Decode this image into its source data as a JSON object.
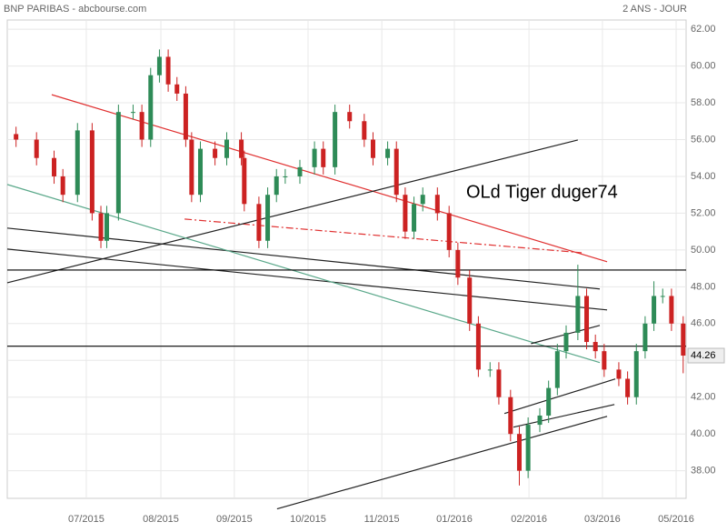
{
  "chart_data": {
    "type": "candlestick",
    "title": "BNP PARIBAS - abcbourse.com",
    "subtitle": "2 ANS - JOUR",
    "annotation": "OLd Tiger duger74",
    "up_color": "#2e8b57",
    "down_color": "#cc2222",
    "grid": true,
    "xlim": [
      0,
      232
    ],
    "xticks": [
      {
        "value": 27,
        "label": "07/2015"
      },
      {
        "value": 52.5,
        "label": "08/2015"
      },
      {
        "value": 77.6,
        "label": "09/2015"
      },
      {
        "value": 102.8,
        "label": "10/2015"
      },
      {
        "value": 128,
        "label": "11/2015"
      },
      {
        "value": 152.8,
        "label": "01/2016"
      },
      {
        "value": 178.3,
        "label": "02/2016"
      },
      {
        "value": 203.4,
        "label": "03/2016"
      },
      {
        "value": 228.6,
        "label": "05/2016"
      }
    ],
    "ylim": [
      36.5,
      62.5
    ],
    "yticks": [
      {
        "value": 38,
        "label": "38.00"
      },
      {
        "value": 40,
        "label": "40.00"
      },
      {
        "value": 42,
        "label": "42.00"
      },
      {
        "value": 44,
        "label": "44.00"
      },
      {
        "value": 46,
        "label": "46.00"
      },
      {
        "value": 48,
        "label": "48.00"
      },
      {
        "value": 50,
        "label": "50.00"
      },
      {
        "value": 52,
        "label": "52.00"
      },
      {
        "value": 54,
        "label": "54.00"
      },
      {
        "value": 56,
        "label": "56.00"
      },
      {
        "value": 58,
        "label": "58.00"
      },
      {
        "value": 60,
        "label": "60.00"
      },
      {
        "value": 62,
        "label": "62.00"
      }
    ],
    "candles": {
      "x": [
        3,
        10,
        16,
        19,
        24,
        29,
        32,
        34,
        38,
        43,
        46,
        49,
        52,
        55,
        58,
        61,
        63,
        66,
        71,
        75,
        80,
        81,
        86,
        89,
        92,
        95,
        100,
        105,
        108,
        112,
        117,
        122,
        125,
        130,
        133,
        136,
        139,
        142,
        147,
        151,
        154,
        158,
        161,
        165,
        168,
        172,
        175,
        178,
        182,
        185,
        188,
        191,
        195,
        198,
        201,
        204,
        209,
        212,
        215,
        218,
        221,
        224,
        227,
        231
      ],
      "open": [
        56.3,
        56,
        55,
        54,
        53,
        56.5,
        52,
        50.5,
        52,
        57.5,
        57.5,
        56,
        59.5,
        60.5,
        59,
        58.5,
        56,
        53,
        55.5,
        55,
        56,
        55,
        52.5,
        50.5,
        53,
        54,
        54,
        54.5,
        55.5,
        54.5,
        57.5,
        57,
        56,
        55,
        55.5,
        53,
        51,
        52.5,
        53,
        52,
        50,
        48.5,
        46,
        43.5,
        43.5,
        42,
        40,
        38,
        40.5,
        41,
        42.5,
        44.5,
        45.5,
        47.5,
        45,
        44.5,
        43.5,
        43,
        42,
        44.5,
        46,
        47.5,
        47.5,
        46
      ],
      "high": [
        56.7,
        56.4,
        55.4,
        54.4,
        56.9,
        56.9,
        52.4,
        52.4,
        57.9,
        57.9,
        57.9,
        59.9,
        60.9,
        60.9,
        59.4,
        58.9,
        56.4,
        55.9,
        55.9,
        56.4,
        56.4,
        55.4,
        52.9,
        53.4,
        54.4,
        54.4,
        54.9,
        55.9,
        55.9,
        57.9,
        57.9,
        57.4,
        56.4,
        55.9,
        55.9,
        53.4,
        52.9,
        53.4,
        53.4,
        52.4,
        50.4,
        48.9,
        46.4,
        43.9,
        43.9,
        42.4,
        40.4,
        40.9,
        41.4,
        42.9,
        44.9,
        45.9,
        49.2,
        47.9,
        45.4,
        44.9,
        43.9,
        43.4,
        44.9,
        46.4,
        48.3,
        47.9,
        47.9,
        46.4
      ],
      "low": [
        55.6,
        54.6,
        53.6,
        52.6,
        52.6,
        51.6,
        50.1,
        50.1,
        51.6,
        57.1,
        55.6,
        55.6,
        59.1,
        58.6,
        58.1,
        55.6,
        52.6,
        52.6,
        54.6,
        54.6,
        54.6,
        52.1,
        50.1,
        50.1,
        52.6,
        53.6,
        53.6,
        54.1,
        54.1,
        54.1,
        56.6,
        55.6,
        54.6,
        54.6,
        52.6,
        50.6,
        50.6,
        52.1,
        51.6,
        49.6,
        48.1,
        45.6,
        43.1,
        43.1,
        41.6,
        39.6,
        37.2,
        37.6,
        40.1,
        40.6,
        42.1,
        44.1,
        45.1,
        44.6,
        44.1,
        43.1,
        42.6,
        41.6,
        41.6,
        44.1,
        45.6,
        47.1,
        45.6,
        43.3
      ],
      "close": [
        56,
        55,
        54,
        53,
        56.5,
        52,
        50.5,
        52,
        57.5,
        57.5,
        56,
        59.5,
        60.5,
        59,
        58.5,
        56,
        53,
        55.5,
        55,
        56,
        55,
        52.5,
        50.5,
        53,
        54,
        54,
        54.5,
        55.5,
        54.5,
        57.5,
        57,
        56,
        55,
        55.5,
        53,
        51,
        52.5,
        53,
        52,
        50,
        48.5,
        46,
        43.5,
        43.5,
        42,
        40,
        38,
        40.5,
        41,
        42.5,
        44.5,
        45.5,
        47.5,
        45,
        44.5,
        43.5,
        43,
        42,
        44.5,
        46,
        47.5,
        47.5,
        46,
        44.26
      ]
    },
    "lines": [
      {
        "x": [
          15.2,
          205
        ],
        "y": [
          58.44,
          49.36
        ],
        "color": "#e03030",
        "style": "solid"
      },
      {
        "x": [
          60.6,
          196.3
        ],
        "y": [
          51.68,
          49.85
        ],
        "color": "#e03030",
        "style": "dashdot"
      },
      {
        "x": [
          0,
          195
        ],
        "y": [
          48.22,
          55.98
        ],
        "color": "#222222",
        "style": "solid"
      },
      {
        "x": [
          0,
          202.5
        ],
        "y": [
          51.19,
          47.88
        ],
        "color": "#222222",
        "style": "solid"
      },
      {
        "x": [
          0,
          205
        ],
        "y": [
          50.05,
          46.74
        ],
        "color": "#222222",
        "style": "solid"
      },
      {
        "x": [
          0,
          202.5
        ],
        "y": [
          53.56,
          43.88
        ],
        "color": "#5aa88a",
        "style": "solid"
      },
      {
        "x": [
          0,
          232
        ],
        "y": [
          48.91,
          48.91
        ],
        "color": "#000000",
        "style": "solid"
      },
      {
        "x": [
          0,
          232
        ],
        "y": [
          44.77,
          44.77
        ],
        "color": "#000000",
        "style": "solid"
      },
      {
        "x": [
          92.2,
          205
        ],
        "y": [
          35.93,
          40.96
        ],
        "color": "#222222",
        "style": "solid"
      },
      {
        "x": [
          169.9,
          207.8
        ],
        "y": [
          41.11,
          42.99
        ],
        "color": "#222222",
        "style": "solid"
      },
      {
        "x": [
          173,
          207.5
        ],
        "y": [
          40.37,
          41.6
        ],
        "color": "#222222",
        "style": "solid"
      },
      {
        "x": [
          179,
          202.5
        ],
        "y": [
          44.91,
          45.9
        ],
        "color": "#222222",
        "style": "solid"
      }
    ]
  }
}
